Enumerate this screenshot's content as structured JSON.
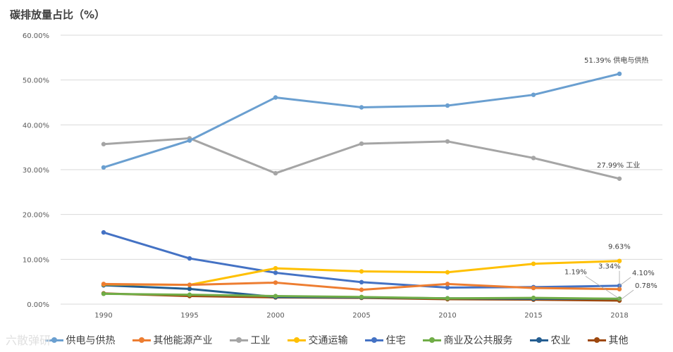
{
  "chart_data": {
    "type": "line",
    "title": "碳排放量占比（%）",
    "categories": [
      "1990",
      "1995",
      "2000",
      "2005",
      "2010",
      "2015",
      "2018"
    ],
    "ylim": [
      0,
      60
    ],
    "yticks": [
      0,
      10,
      20,
      30,
      40,
      50,
      60
    ],
    "ytick_labels": [
      "0.00%",
      "10.00%",
      "20.00%",
      "30.00%",
      "40.00%",
      "50.00%",
      "60.00%"
    ],
    "grid": true,
    "legend_position": "bottom",
    "series": [
      {
        "name": "供电与供热",
        "color": "#6a9fd0",
        "values": [
          30.5,
          36.5,
          46.1,
          43.9,
          44.3,
          46.7,
          51.39
        ]
      },
      {
        "name": "其他能源产业",
        "color": "#ed7d31",
        "values": [
          4.5,
          4.3,
          4.8,
          3.2,
          4.5,
          3.6,
          3.34
        ]
      },
      {
        "name": "工业",
        "color": "#a5a5a5",
        "values": [
          35.7,
          37.0,
          29.2,
          35.8,
          36.3,
          32.6,
          27.99
        ]
      },
      {
        "name": "交通运输",
        "color": "#ffc000",
        "values": [
          4.4,
          4.3,
          8.0,
          7.3,
          7.1,
          9.0,
          9.63
        ]
      },
      {
        "name": "住宅",
        "color": "#4472c4",
        "values": [
          16.0,
          10.2,
          7.0,
          4.9,
          3.7,
          3.8,
          4.1
        ]
      },
      {
        "name": "商业及公共服务",
        "color": "#70ad47",
        "values": [
          2.3,
          2.1,
          1.8,
          1.6,
          1.3,
          1.4,
          1.19
        ]
      },
      {
        "name": "农业",
        "color": "#255e91",
        "values": [
          4.2,
          3.4,
          1.6,
          1.5,
          1.3,
          1.2,
          1.19
        ]
      },
      {
        "name": "其他",
        "color": "#9e480e",
        "values": [
          2.4,
          1.8,
          1.5,
          1.4,
          1.1,
          1.0,
          0.78
        ]
      }
    ],
    "annotations": [
      {
        "series": 0,
        "text": "51.39% 供电与供热"
      },
      {
        "series": 2,
        "text": "27.99% 工业"
      },
      {
        "series": 3,
        "text": "9.63%"
      },
      {
        "series": 4,
        "text": "4.10%"
      },
      {
        "series": 1,
        "text": "3.34%"
      },
      {
        "series": 5,
        "text": "1.19%"
      },
      {
        "series": 7,
        "text": "0.78%"
      }
    ]
  },
  "watermark": "六散弹研"
}
